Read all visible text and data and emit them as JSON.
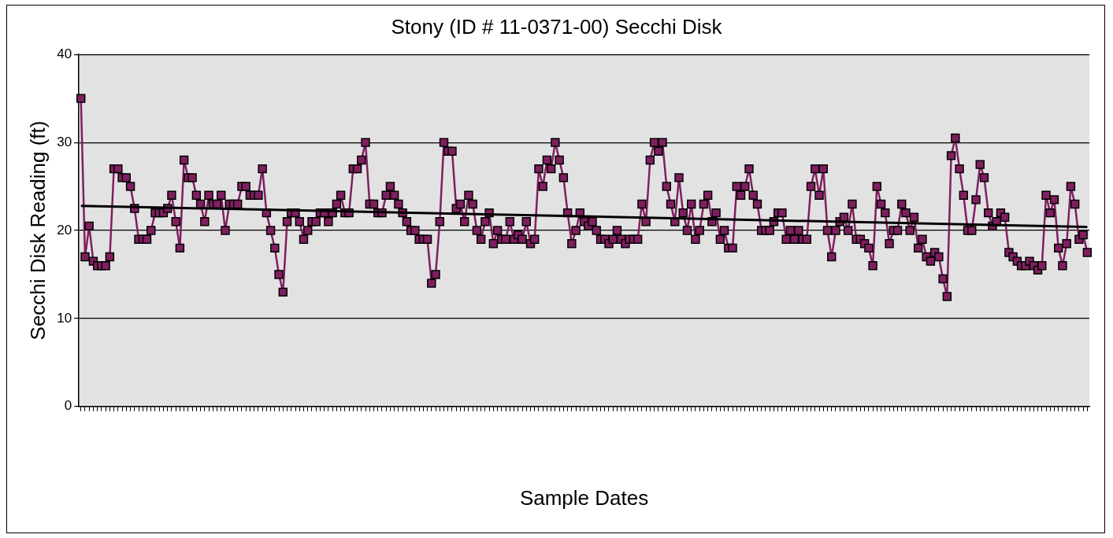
{
  "chart_data": {
    "type": "line",
    "title": "Stony (ID # 11-0371-00) Secchi Disk",
    "xlabel": "Sample Dates",
    "ylabel": "Secchi Disk Reading (ft)",
    "categories": [
      null,
      null,
      null,
      null,
      null,
      null,
      null,
      null,
      null,
      null,
      null,
      null,
      null,
      null,
      null,
      null,
      null,
      null,
      null,
      null,
      null,
      null,
      null,
      null,
      null,
      null,
      null,
      null,
      null,
      null,
      null,
      null,
      null,
      null,
      null,
      null,
      null,
      null,
      null,
      null,
      null,
      null,
      null,
      null,
      null,
      null,
      null,
      null,
      null,
      null,
      null,
      null,
      null,
      null,
      null,
      null,
      null,
      null,
      null,
      null,
      null,
      null,
      null,
      null,
      null,
      null,
      null,
      null,
      null,
      null,
      null,
      null,
      null,
      null,
      null,
      null,
      null,
      null,
      null,
      null,
      null,
      null,
      null,
      null,
      null,
      null,
      null,
      null,
      null,
      null,
      null,
      null,
      null,
      null,
      null,
      null,
      null,
      null,
      null,
      null,
      null,
      null,
      null,
      null,
      null,
      null,
      null,
      null,
      null,
      null,
      null,
      null,
      null,
      null,
      null,
      null,
      null,
      null,
      null,
      null,
      null,
      null,
      null,
      null,
      null,
      null,
      null,
      null,
      null,
      null,
      null,
      null,
      null,
      null,
      null,
      null,
      null,
      null,
      null,
      null,
      null,
      null,
      null,
      null,
      null,
      null,
      null,
      null,
      null,
      null,
      null,
      null,
      null,
      null,
      null,
      null,
      null,
      null,
      null,
      null,
      null,
      null,
      null,
      null,
      null,
      null,
      null,
      null,
      null,
      null,
      null,
      null,
      null,
      null,
      null,
      null,
      null,
      null,
      null,
      null,
      null,
      null,
      null,
      null,
      null,
      null,
      null,
      null,
      null,
      null,
      null,
      null,
      null,
      null,
      null,
      null,
      null,
      null,
      null,
      null,
      null,
      null,
      null,
      null,
      null,
      null,
      null,
      null,
      null,
      null,
      null,
      null,
      null,
      null,
      null,
      null,
      null,
      null,
      null,
      null,
      null,
      null,
      null,
      null,
      null,
      null,
      null,
      null,
      null,
      null,
      null,
      null,
      null,
      null,
      null,
      null,
      null,
      null,
      null,
      null,
      null,
      null,
      null,
      null,
      null
    ],
    "series": [
      {
        "color": "#7f1f5f",
        "marker": "square",
        "values": [
          35,
          17,
          20.5,
          16.5,
          16,
          16,
          16,
          17,
          27,
          27,
          26,
          26,
          25,
          22.5,
          19,
          19,
          19,
          20,
          22,
          22,
          22,
          22.5,
          24,
          21,
          18,
          28,
          26,
          26,
          24,
          23,
          21,
          24,
          23,
          23,
          24,
          20,
          23,
          23,
          23,
          25,
          25,
          24,
          24,
          24,
          27,
          22,
          20,
          18,
          15,
          13,
          21,
          22,
          22,
          21,
          19,
          20,
          21,
          21,
          22,
          22,
          21,
          22,
          23,
          24,
          22,
          22,
          27,
          27,
          28,
          30,
          23,
          23,
          22,
          22,
          24,
          25,
          24,
          23,
          22,
          21,
          20,
          20,
          19,
          19,
          19,
          14,
          15,
          21,
          30,
          29,
          29,
          22.5,
          23,
          21,
          24,
          23,
          20,
          19,
          21,
          22,
          18.5,
          20,
          19,
          19,
          21,
          19,
          19.5,
          19,
          21,
          18.5,
          19,
          27,
          25,
          28,
          27,
          30,
          28,
          26,
          22,
          18.5,
          20,
          22,
          21,
          20.5,
          21,
          20,
          19,
          19,
          18.5,
          19,
          20,
          19,
          18.5,
          19,
          19,
          19,
          23,
          21,
          28,
          30,
          29,
          30,
          25,
          23,
          21,
          26,
          22,
          20,
          23,
          19,
          20,
          23,
          24,
          21,
          22,
          19,
          20,
          18,
          18,
          25,
          24,
          25,
          27,
          24,
          23,
          20,
          20,
          20,
          21,
          22,
          22,
          19,
          20,
          19,
          20,
          19,
          19,
          25,
          27,
          24,
          27,
          20,
          17,
          20,
          21,
          21.5,
          20,
          23,
          19,
          19,
          18.5,
          18,
          16,
          25,
          23,
          22,
          18.5,
          20,
          20,
          23,
          22,
          20,
          21.5,
          18,
          19,
          17,
          16.5,
          17.5,
          17,
          14.5,
          12.5,
          28.5,
          30.5,
          27,
          24,
          20,
          20,
          23.5,
          27.5,
          26,
          22,
          20.5,
          21,
          22,
          21.5,
          17.5,
          17,
          16.5,
          16,
          16,
          16.5,
          16,
          15.5,
          16,
          24,
          22,
          23.5,
          18,
          16,
          18.5,
          25,
          23,
          19,
          19.5,
          17.5
        ]
      },
      {
        "type": "line",
        "color": "#000000",
        "marker": "none",
        "values": [
          22.8,
          null,
          null,
          null,
          null,
          null,
          null,
          null,
          null,
          null,
          null,
          null,
          null,
          null,
          null,
          null,
          null,
          null,
          null,
          null,
          null,
          null,
          null,
          null,
          null,
          null,
          null,
          null,
          null,
          null,
          null,
          null,
          null,
          null,
          null,
          null,
          null,
          null,
          null,
          null,
          null,
          null,
          null,
          null,
          null,
          null,
          null,
          null,
          null,
          null,
          null,
          null,
          null,
          null,
          null,
          null,
          null,
          null,
          null,
          null,
          null,
          null,
          null,
          null,
          null,
          null,
          null,
          null,
          null,
          null,
          null,
          null,
          null,
          null,
          null,
          null,
          null,
          null,
          null,
          null,
          null,
          null,
          null,
          null,
          null,
          null,
          null,
          null,
          null,
          null,
          null,
          null,
          null,
          null,
          null,
          null,
          null,
          null,
          null,
          null,
          null,
          null,
          null,
          null,
          null,
          null,
          null,
          null,
          null,
          null,
          null,
          null,
          null,
          null,
          null,
          null,
          null,
          null,
          null,
          null,
          null,
          null,
          null,
          null,
          null,
          null,
          null,
          null,
          null,
          null,
          null,
          null,
          null,
          null,
          null,
          null,
          null,
          null,
          null,
          null,
          null,
          null,
          null,
          null,
          null,
          null,
          null,
          null,
          null,
          null,
          null,
          null,
          null,
          null,
          null,
          null,
          null,
          null,
          null,
          null,
          null,
          null,
          null,
          null,
          null,
          null,
          null,
          null,
          null,
          null,
          null,
          null,
          null,
          null,
          null,
          null,
          null,
          null,
          null,
          null,
          null,
          null,
          null,
          null,
          null,
          null,
          null,
          null,
          null,
          null,
          null,
          null,
          null,
          null,
          null,
          null,
          null,
          null,
          null,
          null,
          null,
          null,
          null,
          null,
          null,
          null,
          null,
          null,
          null,
          null,
          null,
          null,
          null,
          null,
          null,
          null,
          null,
          null,
          null,
          null,
          null,
          null,
          null,
          null,
          null,
          null,
          null,
          null,
          null,
          null,
          null,
          null,
          null,
          null,
          null,
          null,
          null,
          null,
          null,
          null,
          null,
          null,
          null,
          null,
          20.4
        ]
      }
    ],
    "ylim": [
      0,
      40
    ],
    "yticks": [
      0,
      10,
      20,
      30,
      40
    ],
    "grid": "y",
    "legend": false
  }
}
